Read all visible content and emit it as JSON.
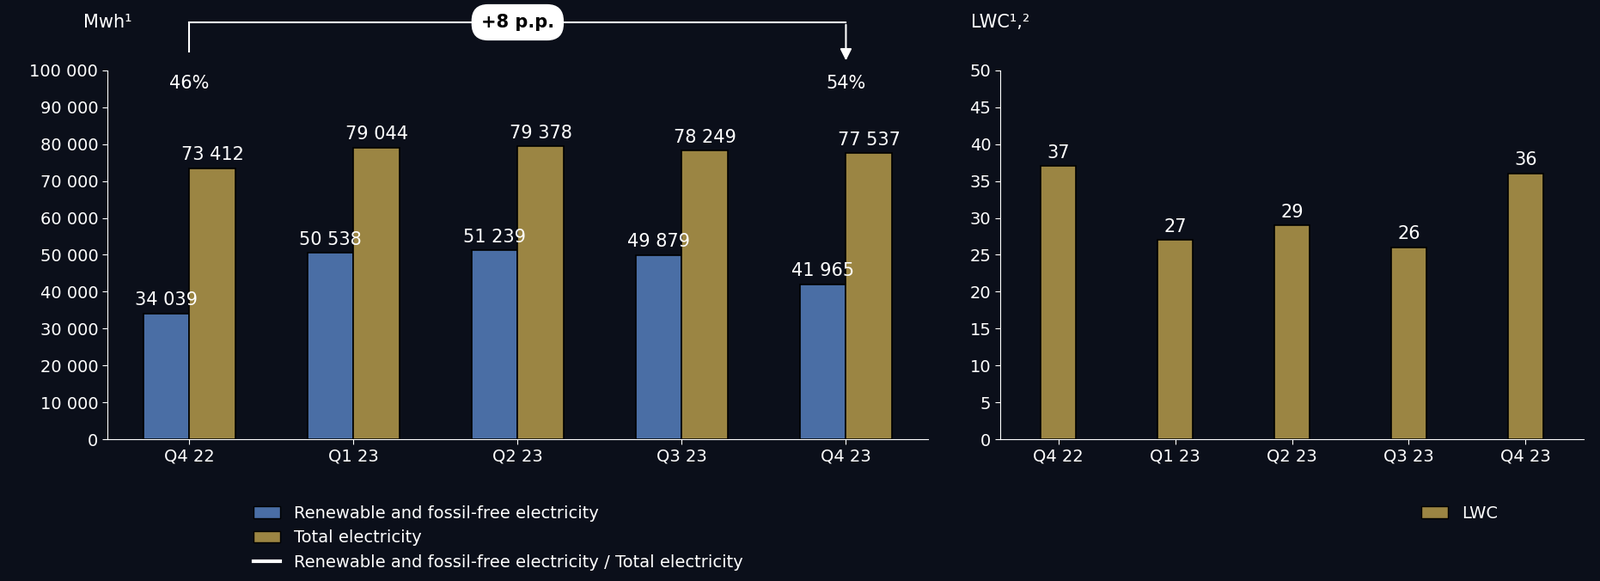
{
  "chart_data": [
    {
      "type": "bar",
      "y_label": "Mwh¹",
      "categories": [
        "Q4 22",
        "Q1 23",
        "Q2 23",
        "Q3 23",
        "Q4 23"
      ],
      "series": [
        {
          "name": "Renewable and fossil-free electricity",
          "color": "#4a6ea5",
          "values": [
            34039,
            50538,
            51239,
            49879,
            41965
          ],
          "value_labels": [
            "34 039",
            "50 538",
            "51 239",
            "49 879",
            "41 965"
          ]
        },
        {
          "name": "Total electricity",
          "color": "#9b8543",
          "values": [
            73412,
            79044,
            79378,
            78249,
            77537
          ],
          "value_labels": [
            "73 412",
            "79 044",
            "79 378",
            "78 249",
            "77 537"
          ]
        }
      ],
      "ratio": {
        "name": "Renewable and fossil-free electricity / Total electricity",
        "type": "line",
        "color": "#ffffff",
        "categories": [
          "Q4 22",
          "Q4 23"
        ],
        "values": [
          46,
          54
        ],
        "value_labels": [
          "46%",
          "54%"
        ]
      },
      "change_label": "+8 p.p.",
      "ylim": [
        0,
        100000
      ],
      "yticks": [
        0,
        {
          "value": 10000,
          "label": "10 000"
        },
        {
          "value": 20000,
          "label": "20 000"
        },
        {
          "value": 30000,
          "label": "30 000"
        },
        {
          "value": 40000,
          "label": "40 000"
        },
        {
          "value": 50000,
          "label": "50 000"
        },
        {
          "value": 60000,
          "label": "60 000"
        },
        {
          "value": 70000,
          "label": "70 000"
        },
        {
          "value": 80000,
          "label": "80 000"
        },
        {
          "value": 90000,
          "label": "90 000"
        },
        {
          "value": 100000,
          "label": "100 000"
        }
      ],
      "data_labels": true,
      "legend": "upper left",
      "grid": false
    },
    {
      "type": "bar",
      "y_label": "LWC¹,²",
      "categories": [
        "Q4 22",
        "Q1 23",
        "Q2 23",
        "Q3 23",
        "Q4 23"
      ],
      "series": [
        {
          "name": "LWC",
          "color": "#9b8543",
          "values": [
            37,
            27,
            29,
            26,
            36
          ]
        }
      ],
      "ylim": [
        0,
        50
      ],
      "yticks": [
        0,
        5,
        10,
        15,
        20,
        25,
        30,
        35,
        40,
        45,
        50
      ],
      "data_labels": true,
      "legend": "upper left",
      "grid": false
    }
  ]
}
